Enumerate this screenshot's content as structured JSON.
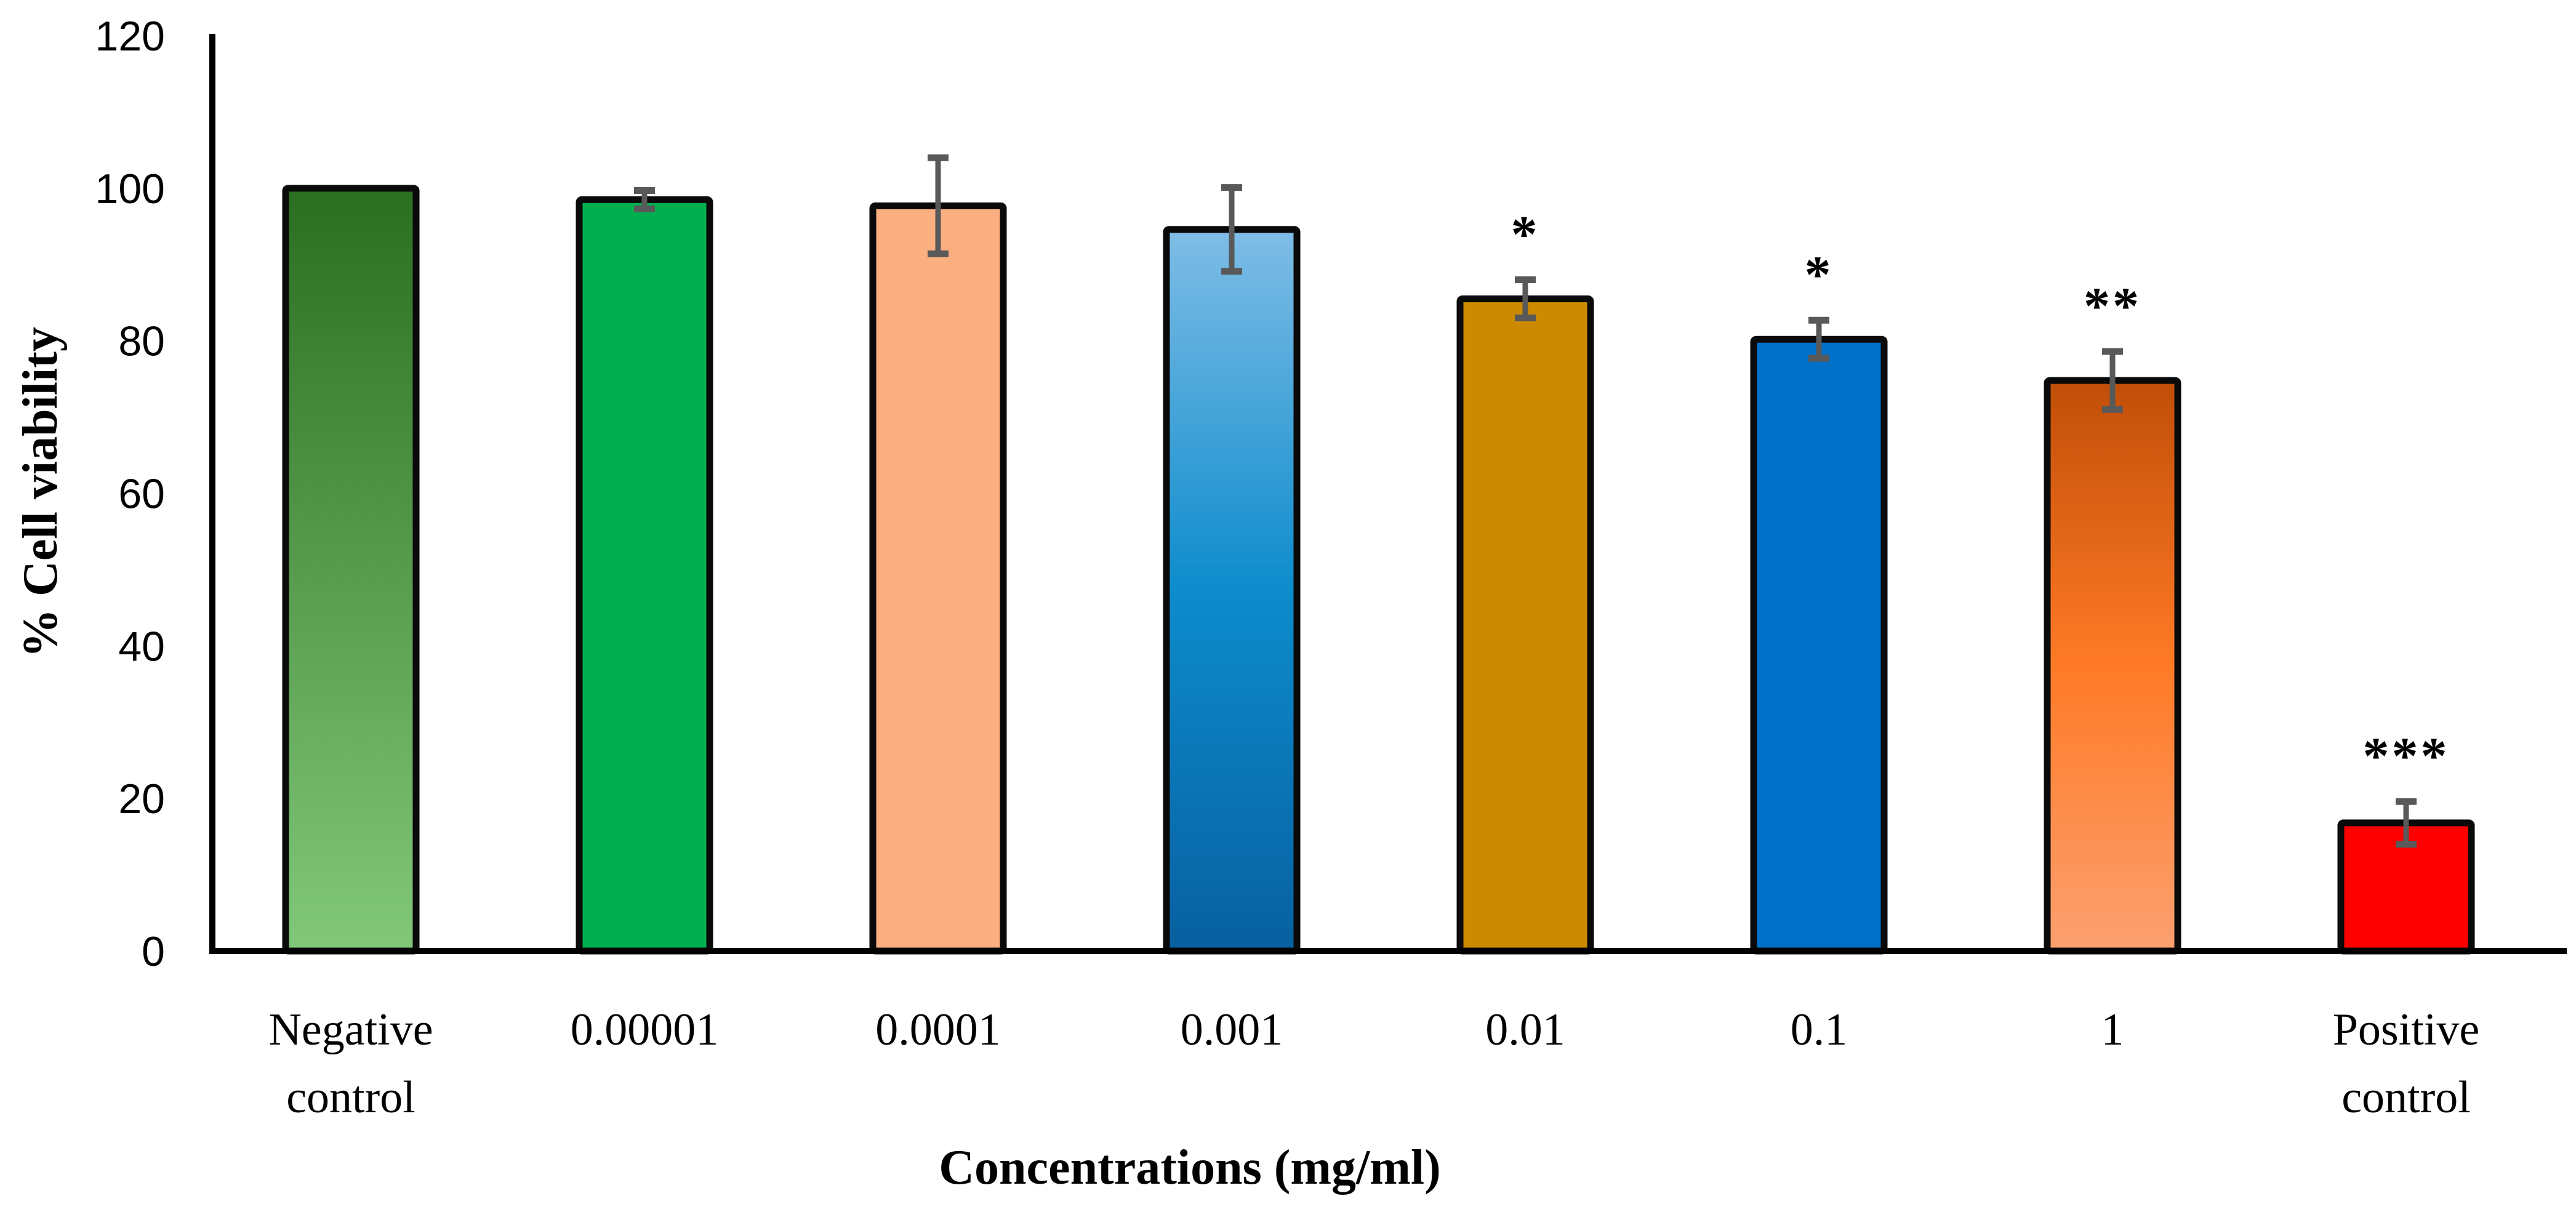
{
  "chart_data": {
    "type": "bar",
    "title": "",
    "xlabel": "Concentrations (mg/ml)",
    "ylabel": "% Cell viability",
    "ylim": [
      0,
      120
    ],
    "yticks": [
      "0",
      "20",
      "40",
      "60",
      "80",
      "100",
      "120"
    ],
    "grid": false,
    "legend": "none",
    "categories": [
      [
        "Negative",
        "control"
      ],
      [
        "0.00001"
      ],
      [
        "0.0001"
      ],
      [
        "0.001"
      ],
      [
        "0.01"
      ],
      [
        "0.1"
      ],
      [
        "1"
      ],
      [
        "Positive",
        "control"
      ]
    ],
    "values": [
      100,
      98.5,
      97.7,
      94.6,
      85.5,
      80.2,
      74.8,
      16.8
    ],
    "error": [
      0,
      1.2,
      6.3,
      5.5,
      2.5,
      2.5,
      3.8,
      2.8
    ],
    "annotations": [
      "",
      "",
      "",
      "",
      "*",
      "*",
      "**",
      "***"
    ],
    "colors": [
      [
        "#2a6e22",
        "#82c87a"
      ],
      [
        "#00b050",
        "#00b050"
      ],
      [
        "#fbae80",
        "#fbae80"
      ],
      [
        "#7fbde6",
        "#0d8ccc",
        "#0860a0"
      ],
      [
        "#cc8a00",
        "#cc8a00"
      ],
      [
        "#0070c8",
        "#0070c8"
      ],
      [
        "#c04e08",
        "#ff7a26",
        "#fba070"
      ],
      [
        "#ff0000",
        "#ff0000"
      ]
    ],
    "error_color": "#595959",
    "border_color": "#0a0a0a"
  }
}
